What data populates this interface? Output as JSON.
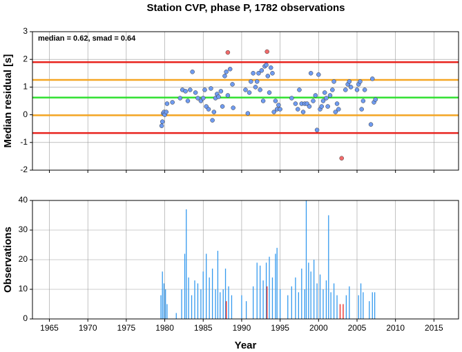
{
  "chart_data": [
    {
      "type": "scatter",
      "title": "Station CVP, phase P, 1782 observations",
      "ylabel": "Median residual [s]",
      "annotation": "median = 0.62, smad = 0.64",
      "xlim": [
        1962.8,
        2018.2
      ],
      "xticks": [
        1965,
        1970,
        1975,
        1980,
        1985,
        1990,
        1995,
        2000,
        2005,
        2010,
        2015
      ],
      "ylim": [
        -2,
        3
      ],
      "yticks": [
        -2,
        -1,
        0,
        1,
        2,
        3
      ],
      "grid": true,
      "hlines": [
        {
          "value": 1.9,
          "color": "#e8221c"
        },
        {
          "value": 1.26,
          "color": "#f5a623"
        },
        {
          "value": 0.62,
          "color": "#2ee02e"
        },
        {
          "value": -0.02,
          "color": "#f5a623"
        },
        {
          "value": -0.66,
          "color": "#e8221c"
        }
      ],
      "series": [
        {
          "color": "#6f9bf0",
          "x": [
            1979.6,
            1979.7,
            1979.8,
            1979.9,
            1980.0,
            1980.2,
            1980.3,
            1981.0,
            1982.0,
            1982.3,
            1982.7,
            1983.0,
            1983.3,
            1983.6,
            1984.0,
            1984.3,
            1984.7,
            1985.0,
            1985.2,
            1985.4,
            1985.7,
            1986.0,
            1986.2,
            1986.4,
            1986.6,
            1986.8,
            1987.0,
            1987.3,
            1987.5,
            1987.8,
            1988.0,
            1988.2,
            1988.5,
            1988.8,
            1988.9,
            1990.5,
            1990.8,
            1991.0,
            1991.2,
            1991.5,
            1991.8,
            1992.0,
            1992.2,
            1992.4,
            1992.6,
            1992.8,
            1993.0,
            1993.2,
            1993.4,
            1993.6,
            1993.8,
            1994.0,
            1994.2,
            1994.4,
            1994.6,
            1994.8,
            1995.0,
            1996.5,
            1997.0,
            1997.3,
            1997.5,
            1997.8,
            1998.0,
            1998.2,
            1998.5,
            1998.8,
            1999.0,
            1999.3,
            1999.6,
            1999.8,
            2000.0,
            2000.2,
            2000.4,
            2000.6,
            2000.8,
            2001.0,
            2001.2,
            2001.5,
            2001.8,
            2002.0,
            2002.2,
            2002.4,
            2002.6,
            2003.5,
            2003.8,
            2004.0,
            2004.2,
            2005.0,
            2005.2,
            2005.4,
            2005.6,
            2005.8,
            2006.0,
            2006.8,
            2007.0,
            2007.2,
            2007.4
          ],
          "values": [
            -0.4,
            -0.25,
            0.05,
            0.1,
            0.0,
            0.1,
            0.4,
            0.45,
            0.6,
            0.9,
            0.85,
            0.5,
            0.9,
            1.55,
            0.8,
            0.6,
            0.5,
            0.6,
            0.9,
            0.3,
            0.2,
            0.95,
            -0.2,
            0.1,
            0.6,
            0.75,
            0.65,
            0.85,
            0.3,
            1.4,
            1.55,
            0.7,
            1.65,
            1.1,
            0.25,
            0.9,
            0.05,
            0.8,
            1.2,
            1.5,
            1.0,
            1.2,
            1.5,
            0.9,
            1.6,
            0.5,
            1.75,
            1.8,
            1.4,
            0.8,
            1.7,
            1.5,
            0.1,
            0.5,
            0.2,
            0.35,
            0.2,
            0.6,
            0.4,
            0.2,
            0.9,
            0.4,
            0.1,
            0.4,
            0.4,
            0.3,
            1.5,
            0.5,
            0.7,
            -0.55,
            1.45,
            0.2,
            0.3,
            0.5,
            0.8,
            0.6,
            0.3,
            0.7,
            0.9,
            1.2,
            0.1,
            0.4,
            0.2,
            0.9,
            1.1,
            1.2,
            1.0,
            0.9,
            1.1,
            1.2,
            0.2,
            0.5,
            0.9,
            -0.35,
            1.3,
            0.45,
            0.55
          ]
        },
        {
          "color": "#f26b6b",
          "x": [
            1988.2,
            1993.3,
            2003.0
          ],
          "values": [
            2.25,
            2.28,
            -1.57
          ]
        }
      ]
    },
    {
      "type": "bar",
      "ylabel": "Observations",
      "xlabel": "Year",
      "xlim": [
        1962.8,
        2018.2
      ],
      "xticks": [
        1965,
        1970,
        1975,
        1980,
        1985,
        1990,
        1995,
        2000,
        2005,
        2010,
        2015
      ],
      "ylim": [
        0,
        40
      ],
      "yticks": [
        0,
        10,
        20,
        30,
        40
      ],
      "grid": true,
      "series": [
        {
          "color": "#3399ee",
          "x": [
            1979.5,
            1979.7,
            1979.9,
            1980.1,
            1980.3,
            1981.5,
            1982.2,
            1982.6,
            1982.8,
            1983.1,
            1983.5,
            1983.9,
            1984.3,
            1984.7,
            1985.0,
            1985.4,
            1985.8,
            1986.2,
            1986.6,
            1986.9,
            1987.2,
            1987.6,
            1987.9,
            1988.3,
            1988.7,
            1990.0,
            1990.6,
            1991.5,
            1992.0,
            1992.4,
            1992.8,
            1993.2,
            1993.6,
            1994.0,
            1994.4,
            1994.6,
            1995.0,
            1996.0,
            1996.5,
            1997.0,
            1997.4,
            1997.8,
            1998.2,
            1998.4,
            1998.7,
            1999.0,
            1999.4,
            1999.8,
            2000.2,
            2000.6,
            2001.0,
            2001.3,
            2001.6,
            2002.0,
            2002.4,
            2003.6,
            2004.0,
            2005.2,
            2005.5,
            2005.8,
            2006.6,
            2007.0,
            2007.3
          ],
          "values": [
            8,
            16,
            12,
            10,
            5,
            2,
            10,
            22,
            37,
            14,
            8,
            13,
            12,
            10,
            16,
            22,
            14,
            17,
            10,
            23,
            9,
            10,
            17,
            11,
            8,
            8,
            6,
            11,
            19,
            18,
            13,
            19,
            21,
            14,
            22,
            24,
            10,
            8,
            11,
            14,
            9,
            17,
            10,
            40,
            19,
            16,
            20,
            12,
            15,
            10,
            13,
            35,
            9,
            12,
            8,
            8,
            11,
            8,
            12,
            9,
            6,
            9,
            9
          ]
        },
        {
          "color": "#e8221c",
          "x": [
            1988.0,
            1993.3,
            2002.8,
            2003.2
          ],
          "values": [
            6,
            11,
            5,
            5
          ]
        }
      ]
    }
  ]
}
